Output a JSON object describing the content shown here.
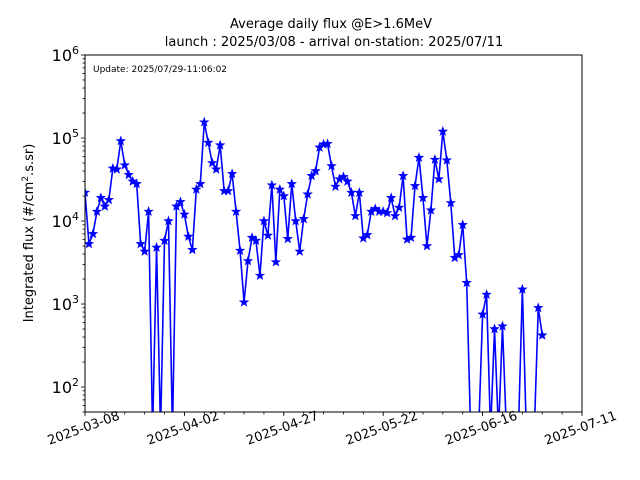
{
  "chart_data": {
    "type": "line",
    "title": "Average daily flux @E>1.6MeV",
    "subtitle": "launch : 2025/03/08 - arrival on-station: 2025/07/11",
    "annotation": "Update: 2025/07/29-11:06:02",
    "ylabel": "Integrated flux (#/cm².s.sr)",
    "ylabel_main": "Integrated flux (#/cm",
    "ylabel_sup": "2",
    "ylabel_tail": ".s.sr)",
    "xlabel": "",
    "xlim": [
      "2025-03-08",
      "2025-07-11"
    ],
    "ylim": [
      50,
      1000000
    ],
    "yscale": "log",
    "grid": false,
    "color": "#0000ff",
    "marker": "star",
    "xticks": [
      "2025-03-08",
      "2025-04-02",
      "2025-04-27",
      "2025-05-22",
      "2025-06-16",
      "2025-07-11"
    ],
    "yticks": [
      {
        "value": 100,
        "base": "10",
        "exp": "2"
      },
      {
        "value": 1000,
        "base": "10",
        "exp": "3"
      },
      {
        "value": 10000,
        "base": "10",
        "exp": "4"
      },
      {
        "value": 100000,
        "base": "10",
        "exp": "5"
      },
      {
        "value": 1000000,
        "base": "10",
        "exp": "6"
      }
    ],
    "x": [
      "2025-03-08",
      "2025-03-09",
      "2025-03-10",
      "2025-03-11",
      "2025-03-12",
      "2025-03-13",
      "2025-03-14",
      "2025-03-15",
      "2025-03-16",
      "2025-03-17",
      "2025-03-18",
      "2025-03-19",
      "2025-03-20",
      "2025-03-21",
      "2025-03-22",
      "2025-03-23",
      "2025-03-24",
      "2025-03-25",
      "2025-03-26",
      "2025-03-27",
      "2025-03-28",
      "2025-03-29",
      "2025-03-30",
      "2025-03-31",
      "2025-04-01",
      "2025-04-02",
      "2025-04-03",
      "2025-04-04",
      "2025-04-05",
      "2025-04-06",
      "2025-04-07",
      "2025-04-08",
      "2025-04-09",
      "2025-04-10",
      "2025-04-11",
      "2025-04-12",
      "2025-04-13",
      "2025-04-14",
      "2025-04-15",
      "2025-04-16",
      "2025-04-17",
      "2025-04-18",
      "2025-04-19",
      "2025-04-20",
      "2025-04-21",
      "2025-04-22",
      "2025-04-23",
      "2025-04-24",
      "2025-04-25",
      "2025-04-26",
      "2025-04-27",
      "2025-04-28",
      "2025-04-29",
      "2025-04-30",
      "2025-05-01",
      "2025-05-02",
      "2025-05-03",
      "2025-05-04",
      "2025-05-05",
      "2025-05-06",
      "2025-05-07",
      "2025-05-08",
      "2025-05-09",
      "2025-05-10",
      "2025-05-11",
      "2025-05-12",
      "2025-05-13",
      "2025-05-14",
      "2025-05-15",
      "2025-05-16",
      "2025-05-17",
      "2025-05-18",
      "2025-05-19",
      "2025-05-20",
      "2025-05-21",
      "2025-05-22",
      "2025-05-23",
      "2025-05-24",
      "2025-05-25",
      "2025-05-26",
      "2025-05-27",
      "2025-05-28",
      "2025-05-29",
      "2025-05-30",
      "2025-05-31",
      "2025-06-01",
      "2025-06-02",
      "2025-06-03",
      "2025-06-04",
      "2025-06-05",
      "2025-06-06",
      "2025-06-07",
      "2025-06-08",
      "2025-06-09",
      "2025-06-10",
      "2025-06-11",
      "2025-06-12",
      "2025-06-13",
      "2025-06-14",
      "2025-06-15",
      "2025-06-16",
      "2025-06-17",
      "2025-06-18",
      "2025-06-19",
      "2025-06-20",
      "2025-06-21",
      "2025-06-22",
      "2025-06-23",
      "2025-06-24",
      "2025-06-25"
    ],
    "y": [
      22000,
      5300,
      7000,
      13000,
      19000,
      15000,
      18000,
      43000,
      42000,
      92000,
      47000,
      36000,
      30000,
      28000,
      5300,
      4300,
      13000,
      null,
      4800,
      null,
      5800,
      10000,
      null,
      15000,
      17000,
      12000,
      6500,
      4500,
      24000,
      28000,
      155000,
      88000,
      50000,
      42000,
      82000,
      23000,
      23000,
      37000,
      13000,
      4400,
      1050,
      3300,
      6300,
      5800,
      2200,
      10000,
      6700,
      27000,
      3200,
      24000,
      20000,
      6100,
      28000,
      10000,
      4300,
      10600,
      21000,
      35000,
      40000,
      77000,
      84000,
      85000,
      46000,
      26000,
      32000,
      34000,
      30000,
      22000,
      11500,
      22000,
      6200,
      6800,
      13000,
      14000,
      13000,
      13000,
      12500,
      19000,
      11500,
      14500,
      35000,
      6000,
      6300,
      26500,
      58000,
      19000,
      5000,
      13500,
      55000,
      32000,
      120000,
      54000,
      16500,
      3600,
      3900,
      9000,
      1800,
      null,
      null,
      null,
      750,
      1300,
      null,
      500,
      null,
      540,
      null,
      null,
      null,
      null
    ],
    "x_tail": [
      "2025-06-26",
      "2025-06-27",
      "2025-06-28",
      "2025-06-29",
      "2025-06-30",
      "2025-07-01"
    ],
    "y_tail": [
      1500,
      null,
      null,
      null,
      900,
      420
    ]
  }
}
